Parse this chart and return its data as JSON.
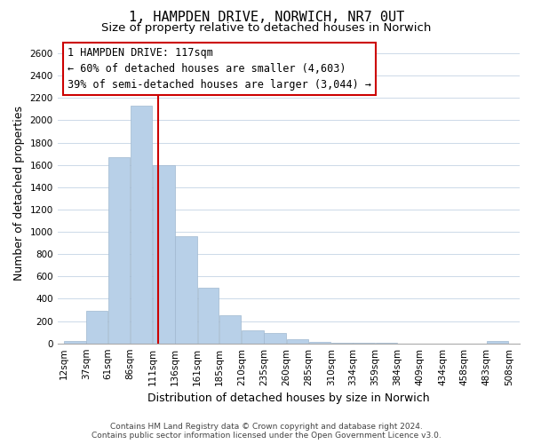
{
  "title": "1, HAMPDEN DRIVE, NORWICH, NR7 0UT",
  "subtitle": "Size of property relative to detached houses in Norwich",
  "xlabel": "Distribution of detached houses by size in Norwich",
  "ylabel": "Number of detached properties",
  "bar_left_edges": [
    12,
    37,
    61,
    86,
    111,
    136,
    161,
    185,
    210,
    235,
    260,
    285,
    310,
    334,
    359,
    384,
    409,
    434,
    458,
    483
  ],
  "bar_heights": [
    20,
    290,
    1670,
    2130,
    1600,
    960,
    500,
    250,
    120,
    95,
    35,
    10,
    5,
    3,
    2,
    1,
    0,
    1,
    0,
    20
  ],
  "bar_widths": [
    25,
    24,
    25,
    25,
    25,
    25,
    24,
    25,
    25,
    25,
    25,
    25,
    24,
    25,
    25,
    25,
    25,
    24,
    25,
    25
  ],
  "tick_labels": [
    "12sqm",
    "37sqm",
    "61sqm",
    "86sqm",
    "111sqm",
    "136sqm",
    "161sqm",
    "185sqm",
    "210sqm",
    "235sqm",
    "260sqm",
    "285sqm",
    "310sqm",
    "334sqm",
    "359sqm",
    "384sqm",
    "409sqm",
    "434sqm",
    "458sqm",
    "483sqm",
    "508sqm"
  ],
  "tick_positions": [
    12,
    37,
    61,
    86,
    111,
    136,
    161,
    185,
    210,
    235,
    260,
    285,
    310,
    334,
    359,
    384,
    409,
    434,
    458,
    483,
    508
  ],
  "bar_color": "#b8d0e8",
  "bar_edge_color": "#a0b8d0",
  "highlight_line_x": 117,
  "highlight_color": "#cc0000",
  "ylim": [
    0,
    2700
  ],
  "xlim": [
    5,
    520
  ],
  "yticks": [
    0,
    200,
    400,
    600,
    800,
    1000,
    1200,
    1400,
    1600,
    1800,
    2000,
    2200,
    2400,
    2600
  ],
  "annotation_title": "1 HAMPDEN DRIVE: 117sqm",
  "annotation_line1": "← 60% of detached houses are smaller (4,603)",
  "annotation_line2": "39% of semi-detached houses are larger (3,044) →",
  "footer_line1": "Contains HM Land Registry data © Crown copyright and database right 2024.",
  "footer_line2": "Contains public sector information licensed under the Open Government Licence v3.0.",
  "title_fontsize": 11,
  "subtitle_fontsize": 9.5,
  "axis_label_fontsize": 9,
  "tick_fontsize": 7.5,
  "annotation_fontsize": 8.5,
  "footer_fontsize": 6.5,
  "grid_color": "#ccd9e8"
}
